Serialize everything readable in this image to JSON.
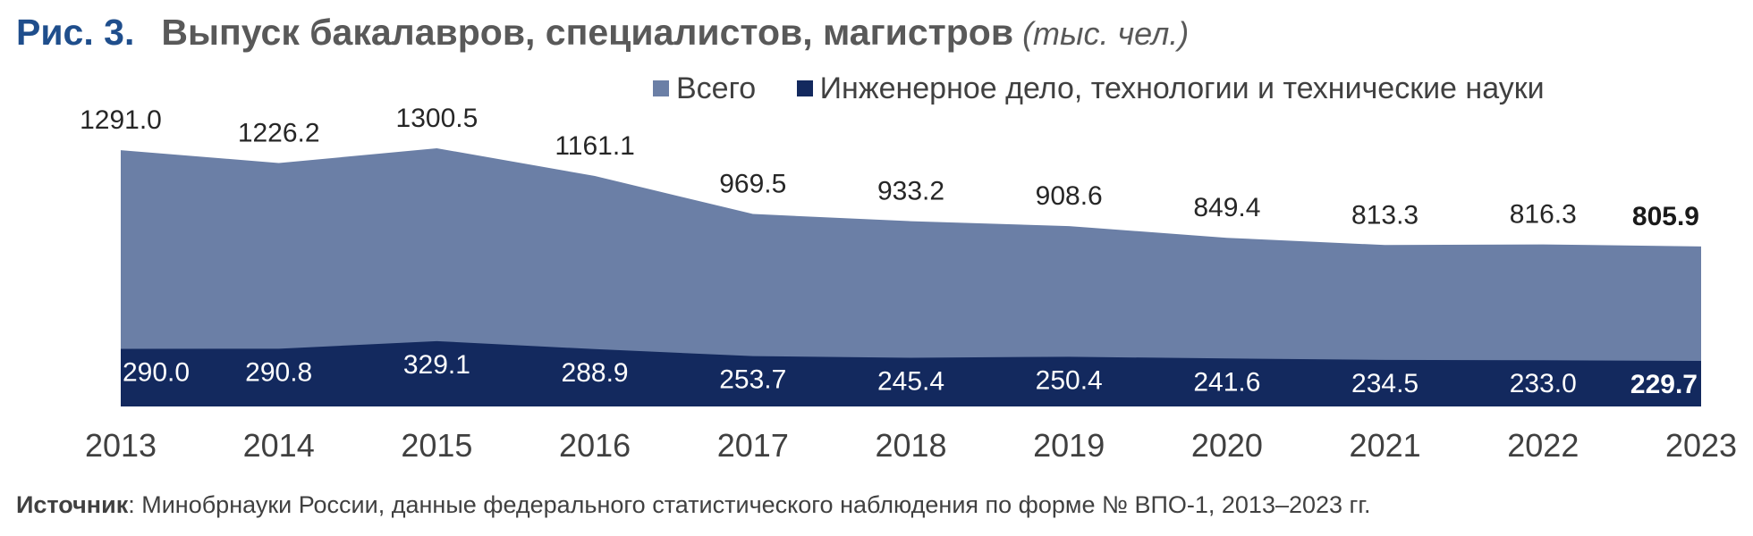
{
  "title": {
    "fig_label": "Рис. 3.",
    "main": "Выпуск бакалавров, специалистов, магистров",
    "unit": "(тыс. чел.)"
  },
  "source": {
    "label": "Источник",
    "text": ": Минобрнауки России, данные федерального статистического наблюдения по форме № ВПО-1, 2013–2023 гг."
  },
  "chart_data": {
    "type": "area",
    "x": [
      "2013",
      "2014",
      "2015",
      "2016",
      "2017",
      "2018",
      "2019",
      "2020",
      "2021",
      "2022",
      "2023"
    ],
    "series": [
      {
        "name": "Всего",
        "color": "#6b7fa6",
        "values": [
          1291.0,
          1226.2,
          1300.5,
          1161.1,
          969.5,
          933.2,
          908.6,
          849.4,
          813.3,
          816.3,
          805.9
        ],
        "labels": [
          "1291.0",
          "1226.2",
          "1300.5",
          "1161.1",
          "969.5",
          "933.2",
          "908.6",
          "849.4",
          "813.3",
          "816.3",
          "805.9"
        ]
      },
      {
        "name": "Инженерное дело, технологии и технические науки",
        "color": "#13295e",
        "values": [
          290.0,
          290.8,
          329.1,
          288.9,
          253.7,
          245.4,
          250.4,
          241.6,
          234.5,
          233.0,
          229.7
        ],
        "labels": [
          "290.0",
          "290.8",
          "329.1",
          "288.9",
          "253.7",
          "245.4",
          "250.4",
          "241.6",
          "234.5",
          "233.0",
          "229.7"
        ]
      }
    ],
    "legend_position": "top-right",
    "grid": false
  }
}
